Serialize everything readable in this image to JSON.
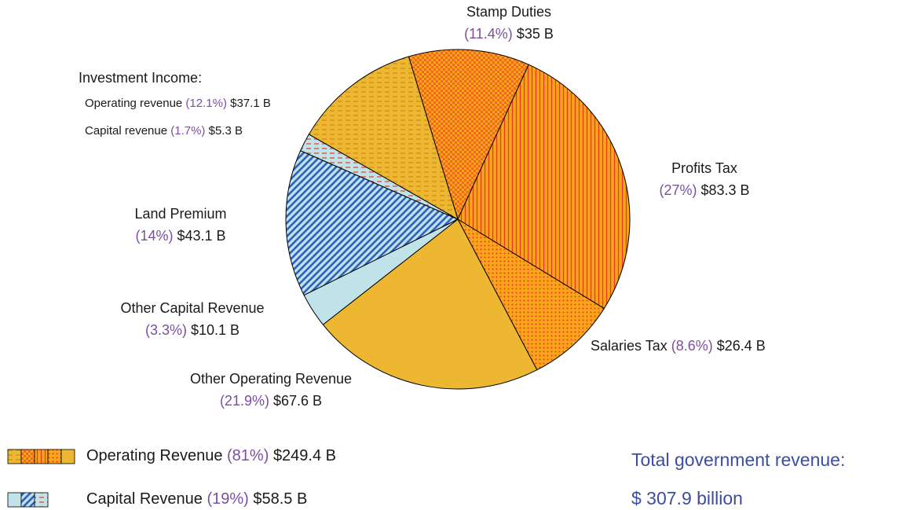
{
  "chart_data": {
    "type": "pie",
    "categories": [
      "Stamp Duties",
      "Profits Tax",
      "Salaries Tax",
      "Other Operating Revenue",
      "Other Capital Revenue",
      "Land Premium",
      "Capital revenue",
      "Operating revenue"
    ],
    "values": [
      35,
      83.3,
      26.4,
      67.6,
      10.1,
      43.1,
      5.3,
      37.1
    ],
    "value_labels": [
      "$35 B",
      "$83.3 B",
      "$26.4 B",
      "$67.6 B",
      "$10.1 B",
      "$43.1 B",
      "$5.3 B",
      "$37.1 B"
    ],
    "percents": [
      11.4,
      27,
      8.6,
      21.9,
      3.3,
      14,
      1.7,
      12.1
    ],
    "percent_labels": [
      "(11.4%)",
      "(27%)",
      "(8.6%)",
      "(21.9%)",
      "(3.3%)",
      "(14%)",
      "(1.7%)",
      "(12.1%)"
    ],
    "colors": [
      "#f26522",
      "#f9a51b",
      "#f9a51b",
      "#edb731",
      "#bfe3e8",
      "#bfe3f2",
      "#bfe3e8",
      "#edb731"
    ],
    "hatches": [
      "checker",
      "vertical",
      "dots",
      "none",
      "none",
      "diagonal",
      "dashes",
      "dashes"
    ],
    "hatch_colors": [
      "#f9a51b",
      "#e8391f",
      "#e8391f",
      "#edb731",
      "#bfe3e8",
      "#2e5db5",
      "#e8391f",
      "#c98a16"
    ],
    "group_label": "Investment Income:",
    "legend": [
      {
        "name": "Operating Revenue",
        "percent": 81,
        "percent_label": "(81%)",
        "value": 249.4,
        "value_label": "$249.4 B"
      },
      {
        "name": "Capital Revenue",
        "percent": 19,
        "percent_label": "(19%)",
        "value": 58.5,
        "value_label": "$58.5 B"
      }
    ],
    "total": {
      "label": "Total government revenue:",
      "value": 307.9,
      "value_label": "$ 307.9  billion"
    }
  }
}
